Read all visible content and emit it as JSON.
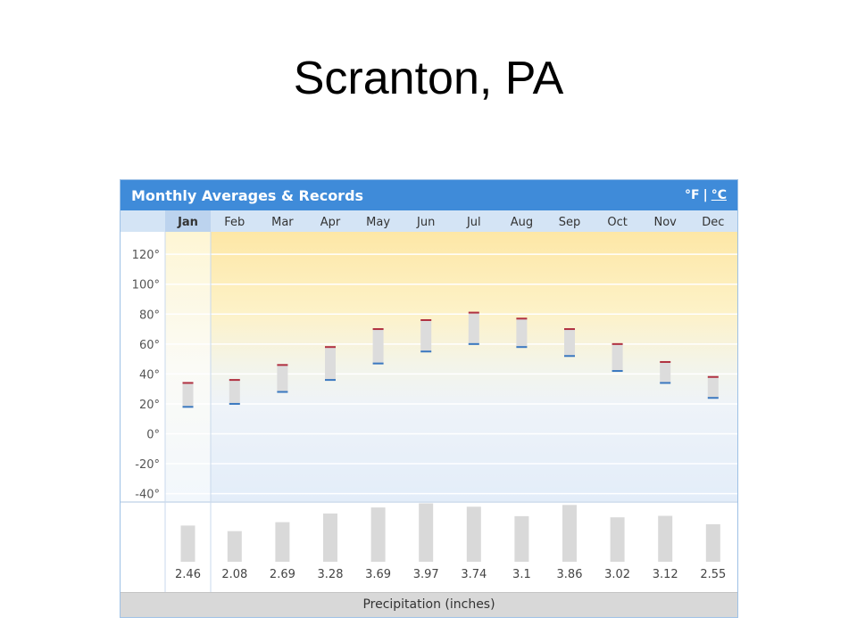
{
  "page": {
    "title": "Scranton, PA"
  },
  "widget": {
    "title": "Monthly Averages & Records",
    "unit_f": "°F",
    "unit_sep": "|",
    "unit_c": "°C",
    "footer_label": "Precipitation (inches)",
    "selected_month": "Jan",
    "colors": {
      "header": "#3f8bd9",
      "month_row": "#d4e4f5",
      "high_marker": "#b03040",
      "low_marker": "#3a78c0",
      "range_bar": "#dcdcdc",
      "precip_bar": "#d9d9d9"
    }
  },
  "chart_data": [
    {
      "type": "range",
      "categories": [
        "Jan",
        "Feb",
        "Mar",
        "Apr",
        "May",
        "Jun",
        "Jul",
        "Aug",
        "Sep",
        "Oct",
        "Nov",
        "Dec"
      ],
      "series": [
        {
          "name": "high",
          "values": [
            34,
            36,
            46,
            58,
            70,
            76,
            81,
            77,
            70,
            60,
            48,
            38
          ]
        },
        {
          "name": "low",
          "values": [
            18,
            20,
            28,
            36,
            47,
            55,
            60,
            58,
            52,
            42,
            34,
            24
          ]
        }
      ],
      "yticks": [
        120,
        100,
        80,
        60,
        40,
        20,
        0,
        -20,
        -40
      ],
      "ytick_labels": [
        "120°",
        "100°",
        "80°",
        "60°",
        "40°",
        "20°",
        "0°",
        "-20°",
        "-40°"
      ],
      "ylim": [
        -45,
        135
      ],
      "grid": true
    },
    {
      "type": "bar",
      "categories": [
        "Jan",
        "Feb",
        "Mar",
        "Apr",
        "May",
        "Jun",
        "Jul",
        "Aug",
        "Sep",
        "Oct",
        "Nov",
        "Dec"
      ],
      "values": [
        2.46,
        2.08,
        2.69,
        3.28,
        3.69,
        3.97,
        3.74,
        3.1,
        3.86,
        3.02,
        3.12,
        2.55
      ],
      "value_labels": [
        "2.46",
        "2.08",
        "2.69",
        "3.28",
        "3.69",
        "3.97",
        "3.74",
        "3.1",
        "3.86",
        "3.02",
        "3.12",
        "2.55"
      ],
      "xlabel": "Precipitation (inches)"
    }
  ]
}
